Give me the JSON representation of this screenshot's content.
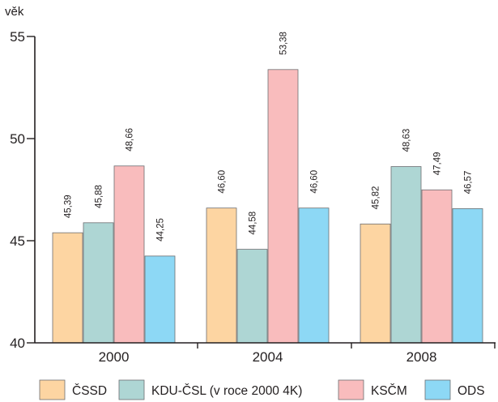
{
  "chart_data": {
    "type": "bar",
    "ylabel": "věk",
    "xlabel": "",
    "ylim": [
      40,
      55
    ],
    "yticks": [
      40,
      45,
      50,
      55
    ],
    "grid": false,
    "legend_position": "bottom",
    "categories": [
      "2000",
      "2004",
      "2008"
    ],
    "series": [
      {
        "name": "ČSSD",
        "color": "#fdd5a2",
        "values": [
          45.39,
          46.6,
          45.82
        ],
        "labels": [
          "45,39",
          "46,60",
          "45,82"
        ]
      },
      {
        "name": "KDU-ČSL (v roce 2000 4K)",
        "color": "#aed6d4",
        "values": [
          45.88,
          44.58,
          48.63
        ],
        "labels": [
          "45,88",
          "44,58",
          "48,63"
        ]
      },
      {
        "name": "KSČM",
        "color": "#f9bcbd",
        "values": [
          48.66,
          53.38,
          47.49
        ],
        "labels": [
          "48,66",
          "53,38",
          "47,49"
        ]
      },
      {
        "name": "ODS",
        "color": "#8dd8f5",
        "values": [
          44.25,
          46.6,
          46.57
        ],
        "labels": [
          "44,25",
          "46,60",
          "46,57"
        ]
      }
    ]
  }
}
